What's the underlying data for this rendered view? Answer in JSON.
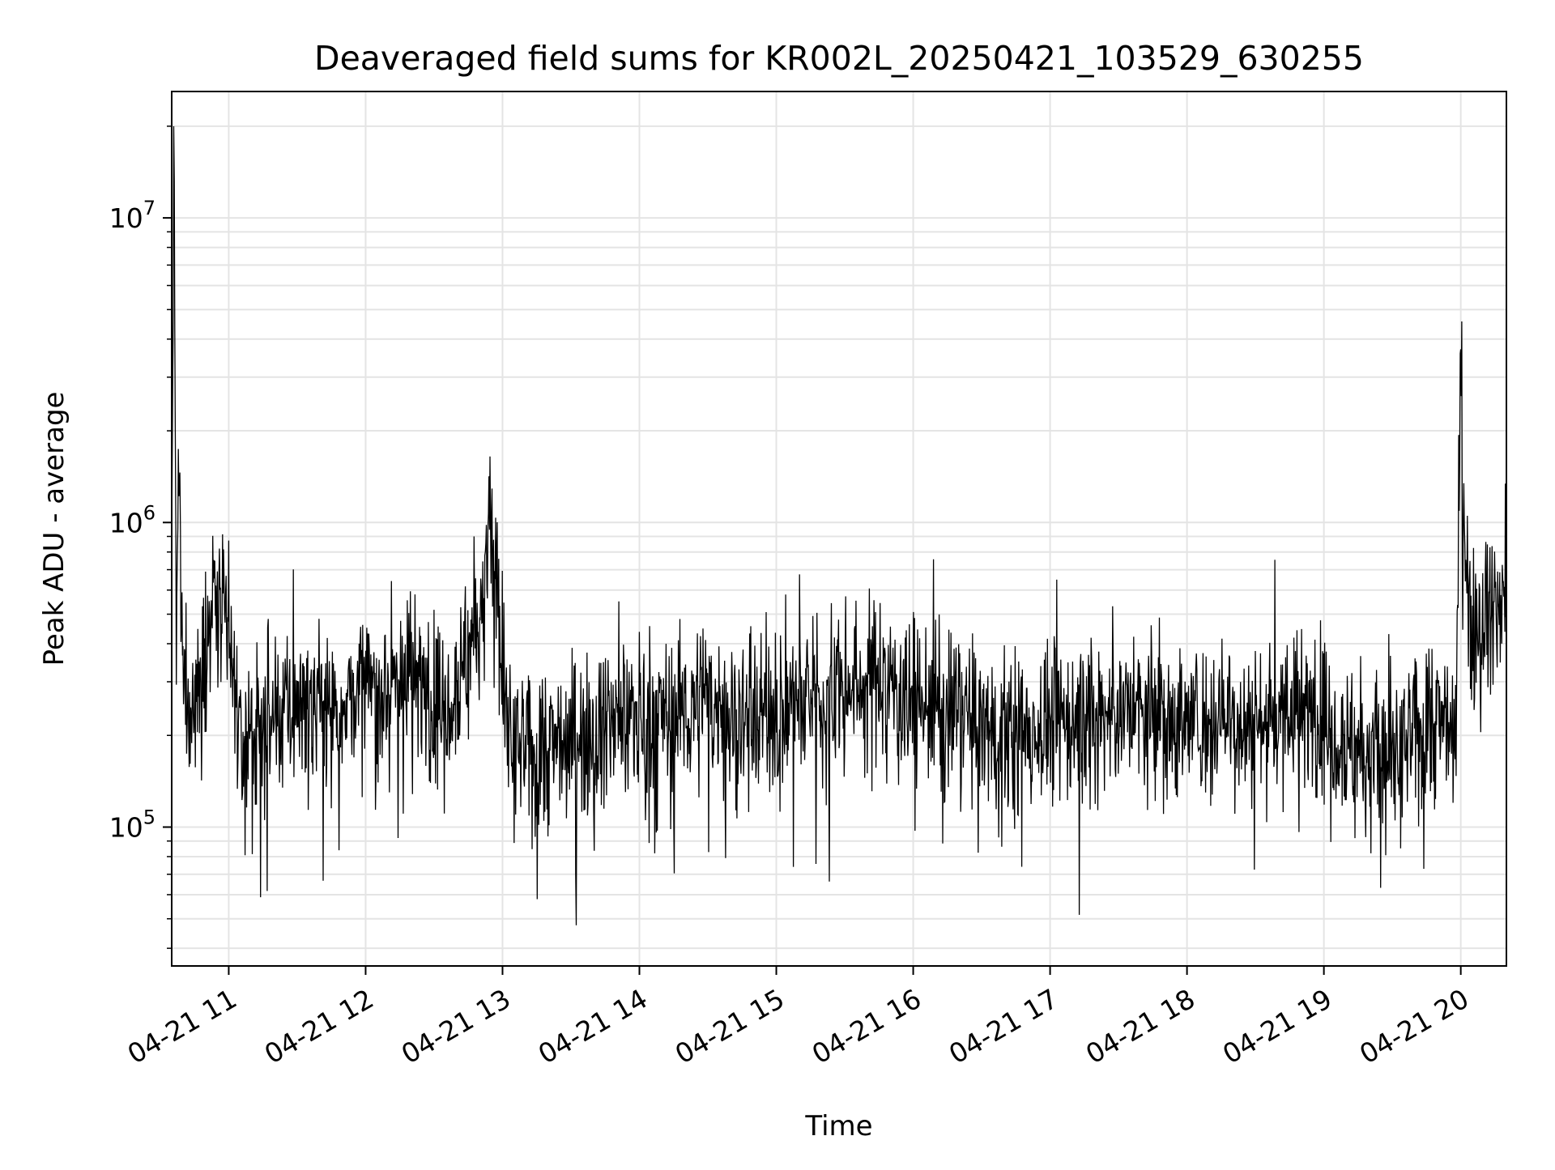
{
  "chart_data": {
    "type": "line",
    "title": "Deaveraged field sums for KR002L_20250421_103529_630255",
    "xlabel": "Time",
    "ylabel": "Peak ADU - average",
    "yscale": "log",
    "grid": true,
    "xlim": [
      "2025-04-21 10:35",
      "2025-04-21 20:20"
    ],
    "ylim": [
      35000,
      26000000
    ],
    "x_ticks": [
      "04-21 11",
      "04-21 12",
      "04-21 13",
      "04-21 14",
      "04-21 15",
      "04-21 16",
      "04-21 17",
      "04-21 18",
      "04-21 19",
      "04-21 20"
    ],
    "y_ticks": [
      {
        "base": "10",
        "exp": "5",
        "value": 100000
      },
      {
        "base": "10",
        "exp": "6",
        "value": 1000000
      },
      {
        "base": "10",
        "exp": "7",
        "value": 10000000
      }
    ],
    "line_color": "#000000",
    "series": [
      {
        "x": [
          "04-21 10:35",
          "04-21 10:36",
          "04-21 10:37",
          "04-21 10:38",
          "04-21 10:40",
          "04-21 10:45",
          "04-21 10:50",
          "04-21 10:55",
          "04-21 11:00",
          "04-21 11:05",
          "04-21 11:10",
          "04-21 11:20",
          "04-21 11:30",
          "04-21 11:40",
          "04-21 11:50",
          "04-21 12:00",
          "04-21 12:10",
          "04-21 12:20",
          "04-21 12:30",
          "04-21 12:40",
          "04-21 12:50",
          "04-21 12:55",
          "04-21 12:58",
          "04-21 13:00",
          "04-21 13:05",
          "04-21 13:15",
          "04-21 13:30",
          "04-21 13:45",
          "04-21 14:00",
          "04-21 14:15",
          "04-21 14:30",
          "04-21 14:45",
          "04-21 15:00",
          "04-21 15:15",
          "04-21 15:30",
          "04-21 15:45",
          "04-21 16:00",
          "04-21 16:15",
          "04-21 16:30",
          "04-21 16:45",
          "04-21 17:00",
          "04-21 17:15",
          "04-21 17:30",
          "04-21 17:45",
          "04-21 18:00",
          "04-21 18:15",
          "04-21 18:30",
          "04-21 18:45",
          "04-21 19:00",
          "04-21 19:15",
          "04-21 19:30",
          "04-21 19:45",
          "04-21 19:58",
          "04-21 20:00",
          "04-21 20:02",
          "04-21 20:05",
          "04-21 20:10",
          "04-21 20:15",
          "04-21 20:20"
        ],
        "y": [
          700000,
          20000000,
          400000,
          1300000,
          300000,
          250000,
          400000,
          600000,
          400000,
          180000,
          200000,
          220000,
          250000,
          240000,
          260000,
          280000,
          300000,
          320000,
          250000,
          300000,
          500000,
          900000,
          600000,
          250000,
          180000,
          170000,
          200000,
          220000,
          230000,
          240000,
          250000,
          230000,
          240000,
          260000,
          280000,
          320000,
          260000,
          230000,
          210000,
          200000,
          220000,
          230000,
          240000,
          230000,
          220000,
          230000,
          220000,
          240000,
          230000,
          180000,
          160000,
          220000,
          220000,
          3700000,
          800000,
          450000,
          550000,
          500000,
          550000
        ]
      }
    ]
  }
}
